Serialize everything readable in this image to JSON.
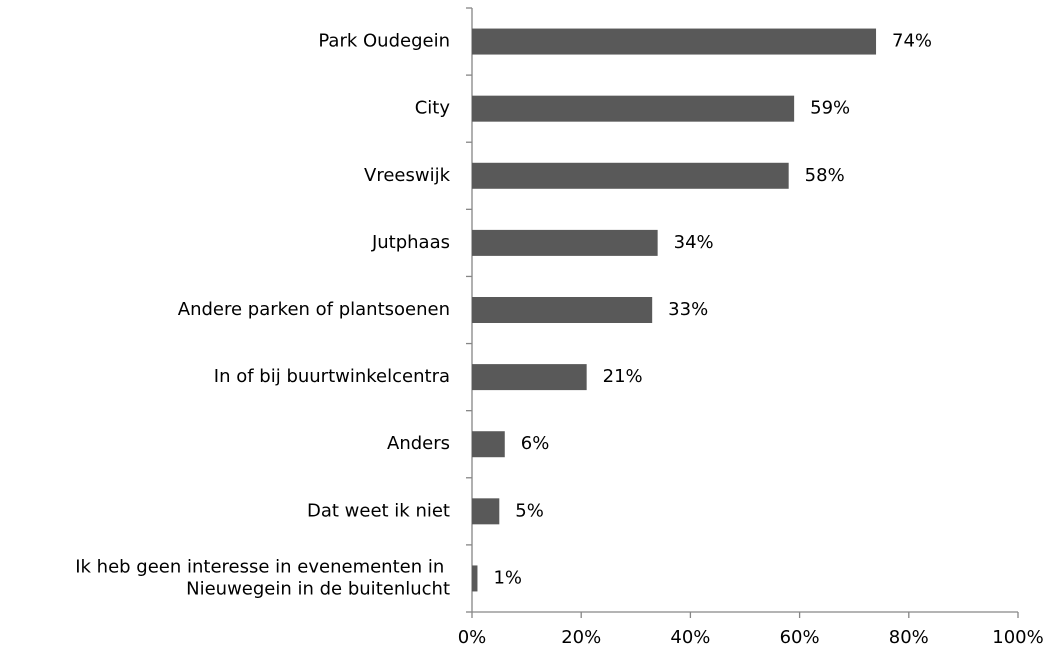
{
  "chart_data": {
    "type": "bar",
    "orientation": "horizontal",
    "categories": [
      "Park Oudegein",
      "City",
      "Vreeswijk",
      "Jutphaas",
      "Andere parken of plantsoenen",
      "In of bij buurtwinkelcentra",
      "Anders",
      "Dat weet ik niet",
      "Ik heb geen interesse in evenementen in Nieuwegein in de buitenlucht"
    ],
    "values": [
      74,
      59,
      58,
      34,
      33,
      21,
      6,
      5,
      1
    ],
    "value_labels": [
      "74%",
      "59%",
      "58%",
      "34%",
      "33%",
      "21%",
      "6%",
      "5%",
      "1%"
    ],
    "color": "#595959",
    "xlim": [
      0,
      100
    ],
    "xticks": [
      {
        "value": 0,
        "label": "0%"
      },
      {
        "value": 20,
        "label": "20%"
      },
      {
        "value": 40,
        "label": "40%"
      },
      {
        "value": 60,
        "label": "60%"
      },
      {
        "value": 80,
        "label": "80%"
      },
      {
        "value": 100,
        "label": "100%"
      }
    ],
    "grid": false
  }
}
